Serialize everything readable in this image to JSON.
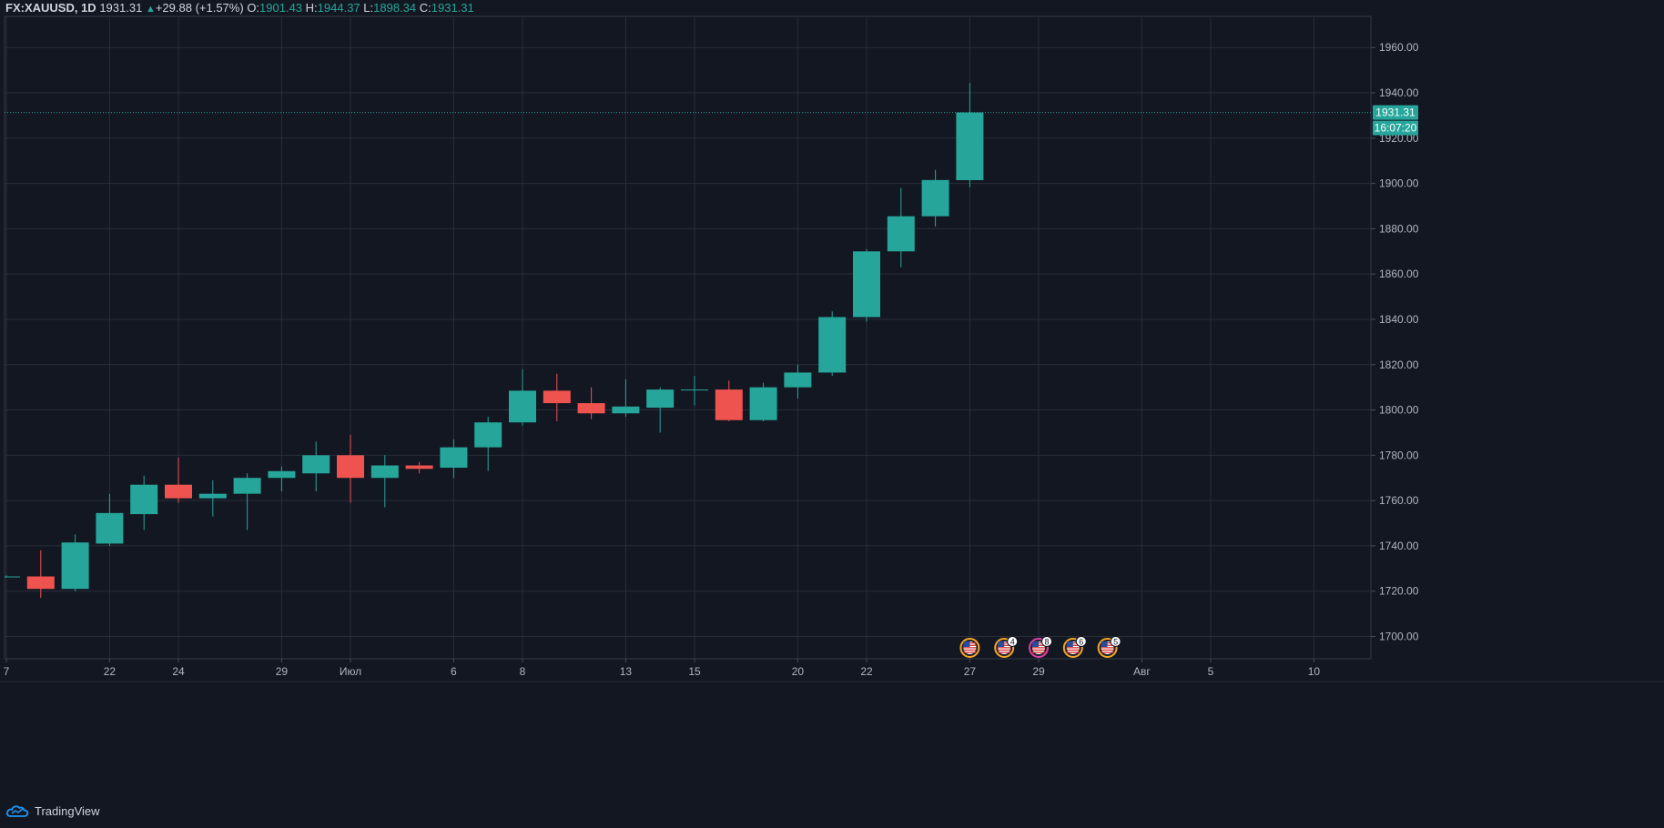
{
  "header": {
    "symbol": "FX:XAUUSD, 1D",
    "last": "1931.31",
    "change_arrow": "▲",
    "change": "+29.88 (+1.57%)",
    "open_label": "O:",
    "open": "1901.43",
    "high_label": "H:",
    "high": "1944.37",
    "low_label": "L:",
    "low": "1898.34",
    "close_label": "C:",
    "close": "1931.31"
  },
  "price_tag": {
    "price": "1931.31",
    "countdown": "16:07:20"
  },
  "footer": {
    "brand": "TradingView",
    "logo_icon": "tradingview-cloud-icon"
  },
  "colors": {
    "background": "#131722",
    "up": "#26a69a",
    "down": "#ef5350",
    "grid": "#2a2e39",
    "text": "#b2b5be"
  },
  "events": [
    {
      "icon": "us-flag-icon",
      "badge": ""
    },
    {
      "icon": "us-flag-icon",
      "badge": "4"
    },
    {
      "icon": "us-flag-icon",
      "badge": "8"
    },
    {
      "icon": "us-flag-icon",
      "badge": "6"
    },
    {
      "icon": "us-flag-icon",
      "badge": "5"
    }
  ],
  "chart_data": {
    "type": "candlestick",
    "symbol": "FX:XAUUSD",
    "interval": "1D",
    "ylim": [
      1690,
      1970
    ],
    "y_ticks": [
      1700,
      1720,
      1740,
      1760,
      1780,
      1800,
      1820,
      1840,
      1860,
      1880,
      1900,
      1920,
      1940,
      1960
    ],
    "x_ticks": [
      {
        "i": 0,
        "label": "7"
      },
      {
        "i": 3,
        "label": "22"
      },
      {
        "i": 5,
        "label": "24"
      },
      {
        "i": 8,
        "label": "29"
      },
      {
        "i": 10,
        "label": "Июл"
      },
      {
        "i": 13,
        "label": "6"
      },
      {
        "i": 15,
        "label": "8"
      },
      {
        "i": 18,
        "label": "13"
      },
      {
        "i": 20,
        "label": "15"
      },
      {
        "i": 23,
        "label": "20"
      },
      {
        "i": 25,
        "label": "22"
      },
      {
        "i": 28,
        "label": "27"
      },
      {
        "i": 30,
        "label": "29"
      },
      {
        "i": 33,
        "label": "Авг"
      },
      {
        "i": 35,
        "label": "5"
      },
      {
        "i": 38,
        "label": "10"
      }
    ],
    "candles": [
      {
        "o": 1726.5,
        "h": 1727.0,
        "l": 1726.0,
        "c": 1726.5
      },
      {
        "o": 1726.5,
        "h": 1738.0,
        "l": 1717.0,
        "c": 1721.0
      },
      {
        "o": 1721.0,
        "h": 1745.0,
        "l": 1720.0,
        "c": 1741.5
      },
      {
        "o": 1741.0,
        "h": 1763.0,
        "l": 1740.0,
        "c": 1754.5
      },
      {
        "o": 1754.0,
        "h": 1771.0,
        "l": 1747.0,
        "c": 1767.0
      },
      {
        "o": 1767.0,
        "h": 1779.0,
        "l": 1759.0,
        "c": 1761.0
      },
      {
        "o": 1761.0,
        "h": 1769.0,
        "l": 1753.0,
        "c": 1763.0
      },
      {
        "o": 1763.0,
        "h": 1772.0,
        "l": 1747.0,
        "c": 1770.0
      },
      {
        "o": 1770.0,
        "h": 1775.0,
        "l": 1764.0,
        "c": 1773.0
      },
      {
        "o": 1772.0,
        "h": 1786.0,
        "l": 1764.0,
        "c": 1780.0
      },
      {
        "o": 1780.0,
        "h": 1789.0,
        "l": 1759.0,
        "c": 1770.0
      },
      {
        "o": 1770.0,
        "h": 1780.0,
        "l": 1757.0,
        "c": 1775.5
      },
      {
        "o": 1775.5,
        "h": 1777.0,
        "l": 1772.0,
        "c": 1774.0
      },
      {
        "o": 1774.5,
        "h": 1787.0,
        "l": 1770.0,
        "c": 1783.5
      },
      {
        "o": 1783.5,
        "h": 1797.0,
        "l": 1773.0,
        "c": 1794.5
      },
      {
        "o": 1794.5,
        "h": 1818.0,
        "l": 1793.0,
        "c": 1808.5
      },
      {
        "o": 1808.5,
        "h": 1816.0,
        "l": 1795.0,
        "c": 1803.0
      },
      {
        "o": 1803.0,
        "h": 1810.0,
        "l": 1796.0,
        "c": 1798.5
      },
      {
        "o": 1798.5,
        "h": 1813.5,
        "l": 1797.0,
        "c": 1801.5
      },
      {
        "o": 1801.0,
        "h": 1810.0,
        "l": 1790.0,
        "c": 1809.0
      },
      {
        "o": 1809.0,
        "h": 1815.0,
        "l": 1802.0,
        "c": 1809.0
      },
      {
        "o": 1809.0,
        "h": 1813.0,
        "l": 1795.0,
        "c": 1795.5
      },
      {
        "o": 1795.5,
        "h": 1812.0,
        "l": 1795.0,
        "c": 1810.0
      },
      {
        "o": 1810.0,
        "h": 1820.0,
        "l": 1805.0,
        "c": 1816.5
      },
      {
        "o": 1816.5,
        "h": 1843.5,
        "l": 1815.0,
        "c": 1841.0
      },
      {
        "o": 1841.0,
        "h": 1871.0,
        "l": 1839.0,
        "c": 1870.0
      },
      {
        "o": 1870.0,
        "h": 1898.0,
        "l": 1863.0,
        "c": 1885.5
      },
      {
        "o": 1885.5,
        "h": 1906.0,
        "l": 1881.0,
        "c": 1901.5
      },
      {
        "o": 1901.43,
        "h": 1944.37,
        "l": 1898.34,
        "c": 1931.31
      }
    ]
  }
}
